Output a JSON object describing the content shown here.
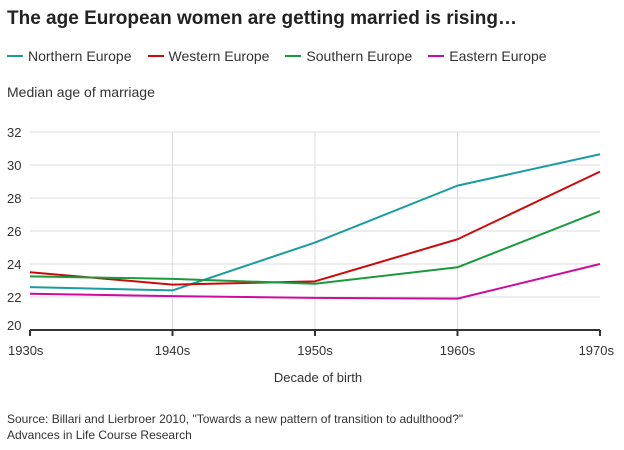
{
  "chart_data": {
    "type": "line",
    "title": "The age European women are getting married is rising…",
    "ylabel": "Median age of marriage",
    "xlabel": "Decade of birth",
    "categories": [
      "1930s",
      "1940s",
      "1950s",
      "1960s",
      "1970s"
    ],
    "ylim": [
      20,
      32
    ],
    "yticks": [
      20,
      22,
      24,
      26,
      28,
      30,
      32
    ],
    "grid": true,
    "legend": "top",
    "series": [
      {
        "name": "Northern Europe",
        "color": "#1a9c9e",
        "values": [
          22.6,
          22.4,
          25.3,
          28.75,
          30.65
        ]
      },
      {
        "name": "Western Europe",
        "color": "#cc0a0a",
        "values": [
          23.5,
          22.75,
          22.95,
          25.5,
          29.6
        ]
      },
      {
        "name": "Southern Europe",
        "color": "#1a9a3c",
        "values": [
          23.25,
          23.1,
          22.8,
          23.8,
          27.2
        ]
      },
      {
        "name": "Eastern Europe",
        "color": "#cc0c9e",
        "values": [
          22.2,
          22.05,
          21.95,
          21.9,
          24.0
        ]
      }
    ]
  },
  "source": {
    "line1": "Source: Billari and Lierbroer 2010, \"Towards a new pattern of transition to adulthood?\"",
    "line2": "Advances in Life Course Research"
  }
}
